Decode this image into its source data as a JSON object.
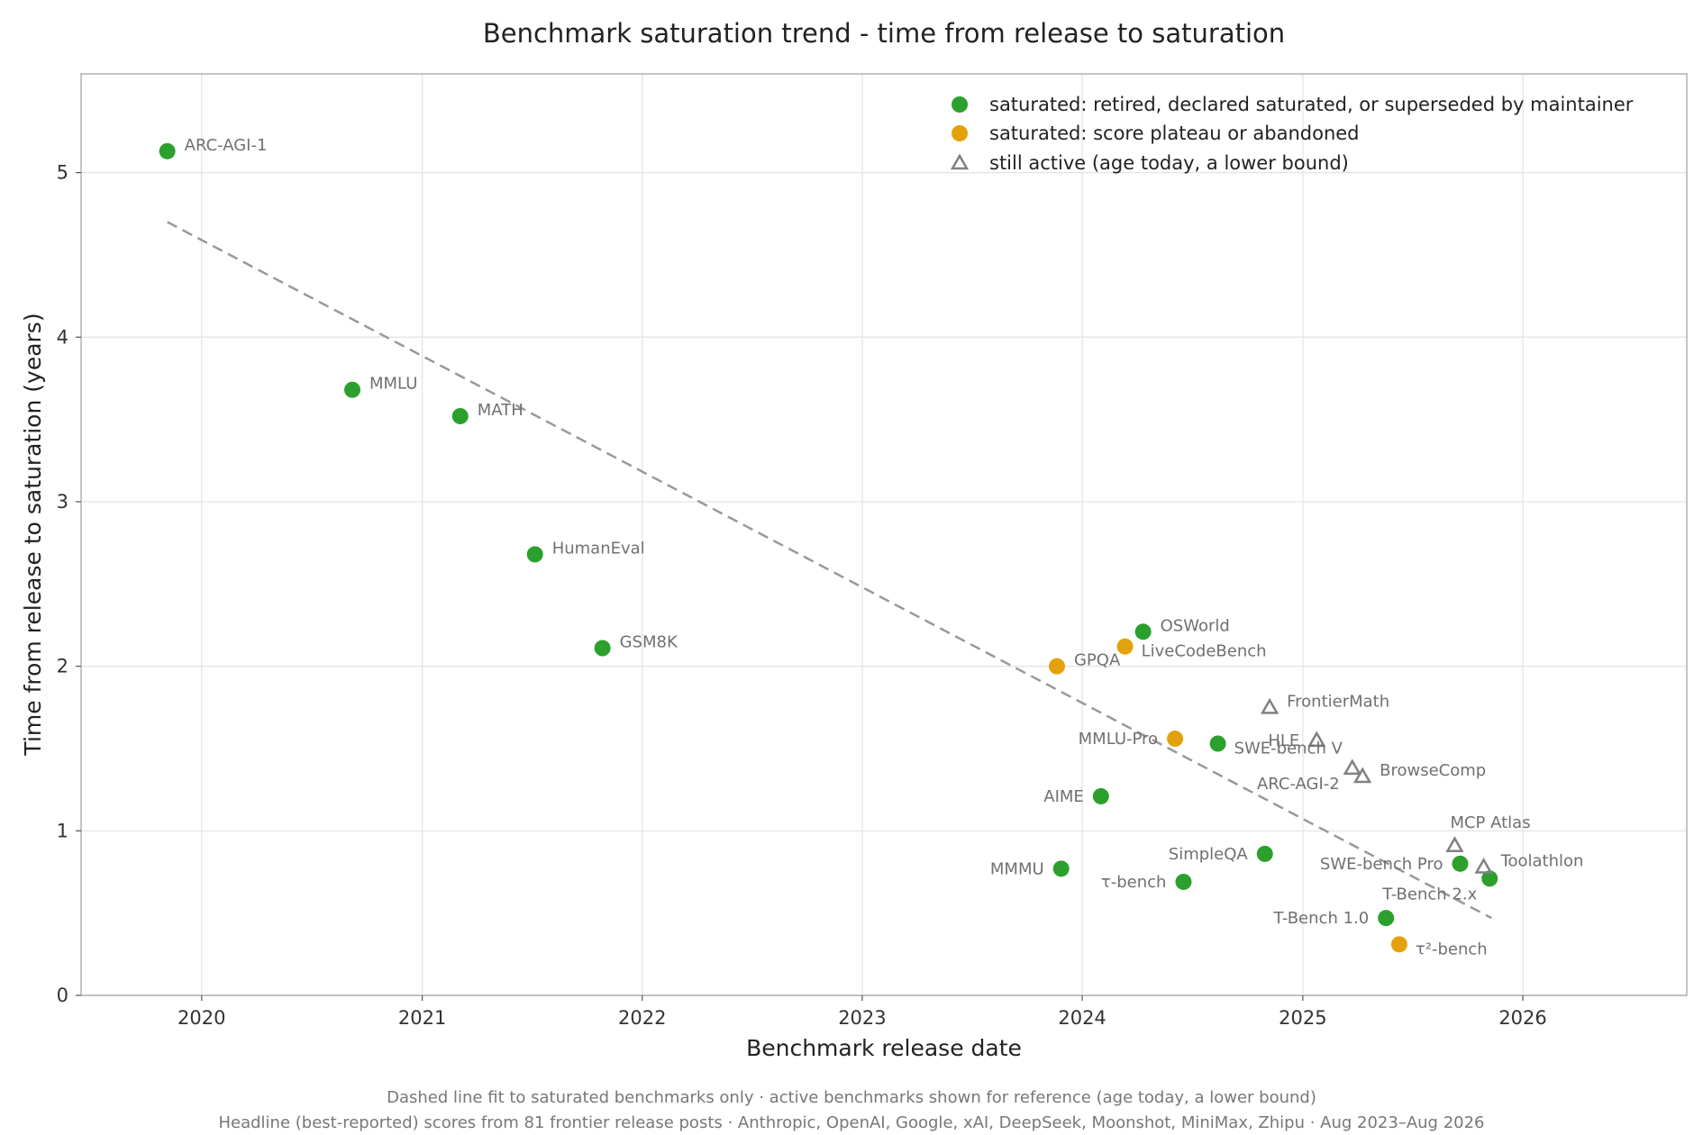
{
  "chart_data": {
    "type": "scatter",
    "title": "Benchmark saturation trend - time from release to saturation",
    "xlabel": "Benchmark release date",
    "ylabel": "Time from release to saturation (years)",
    "x_scale": "date",
    "xlim": [
      "2019-06-15",
      "2026-09-30"
    ],
    "ylim": [
      0,
      5.6
    ],
    "x_ticks": [
      {
        "date": "2020-01-01",
        "label": "2020"
      },
      {
        "date": "2021-01-01",
        "label": "2021"
      },
      {
        "date": "2022-01-01",
        "label": "2022"
      },
      {
        "date": "2023-01-01",
        "label": "2023"
      },
      {
        "date": "2024-01-01",
        "label": "2024"
      },
      {
        "date": "2025-01-01",
        "label": "2025"
      },
      {
        "date": "2026-01-01",
        "label": "2026"
      }
    ],
    "y_ticks": [
      0,
      1,
      2,
      3,
      4,
      5
    ],
    "grid": true,
    "legend_position": "top-right",
    "series": [
      {
        "name": "saturated: retired, declared saturated, or superseded by maintainer",
        "marker": "circle",
        "color": "#2ca02c",
        "points": [
          {
            "label": "ARC-AGI-1",
            "date": "2019-11-05",
            "y": 5.13,
            "label_side": "right"
          },
          {
            "label": "MMLU",
            "date": "2020-09-07",
            "y": 3.68,
            "label_side": "right"
          },
          {
            "label": "MATH",
            "date": "2021-03-05",
            "y": 3.52,
            "label_side": "right"
          },
          {
            "label": "HumanEval",
            "date": "2021-07-07",
            "y": 2.68,
            "label_side": "right"
          },
          {
            "label": "GSM8K",
            "date": "2021-10-27",
            "y": 2.11,
            "label_side": "right"
          },
          {
            "label": "OSWorld",
            "date": "2024-04-11",
            "y": 2.21,
            "label_side": "right"
          },
          {
            "label": "AIME",
            "date": "2024-02-01",
            "y": 1.21,
            "label_side": "left"
          },
          {
            "label": "MMMU",
            "date": "2023-11-27",
            "y": 0.77,
            "label_side": "left"
          },
          {
            "label": "τ-bench",
            "date": "2024-06-17",
            "y": 0.69,
            "label_side": "left"
          },
          {
            "label": "SWE-bench V",
            "date": "2024-08-13",
            "y": 1.53,
            "label_side": "below-right"
          },
          {
            "label": "SimpleQA",
            "date": "2024-10-30",
            "y": 0.86,
            "label_side": "left"
          },
          {
            "label": "T-Bench 1.0",
            "date": "2025-05-19",
            "y": 0.47,
            "label_side": "left"
          },
          {
            "label": "SWE-bench Pro",
            "date": "2025-09-19",
            "y": 0.8,
            "label_side": "left"
          },
          {
            "label": "T-Bench 2.x",
            "date": "2025-11-07",
            "y": 0.71,
            "label_side": "below-left"
          }
        ]
      },
      {
        "name": "saturated: score plateau or abandoned",
        "marker": "circle",
        "color": "#e3a20b",
        "points": [
          {
            "label": "GPQA",
            "date": "2023-11-20",
            "y": 2.0,
            "label_side": "right"
          },
          {
            "label": "LiveCodeBench",
            "date": "2024-03-12",
            "y": 2.12,
            "label_side": "below-right"
          },
          {
            "label": "MMLU-Pro",
            "date": "2024-06-03",
            "y": 1.56,
            "label_side": "left"
          },
          {
            "label": "τ²-bench",
            "date": "2025-06-10",
            "y": 0.31,
            "label_side": "below-right"
          }
        ]
      },
      {
        "name": "still active (age today, a lower bound)",
        "marker": "triangle",
        "color": "#808080",
        "points": [
          {
            "label": "FrontierMath",
            "date": "2024-11-07",
            "y": 1.75,
            "label_side": "right"
          },
          {
            "label": "HLE",
            "date": "2025-01-24",
            "y": 1.55,
            "label_side": "left"
          },
          {
            "label": "ARC-AGI-2",
            "date": "2025-03-24",
            "y": 1.38,
            "label_side": "below-left"
          },
          {
            "label": "BrowseComp",
            "date": "2025-04-10",
            "y": 1.33,
            "label_side": "right"
          },
          {
            "label": "MCP Atlas",
            "date": "2025-09-10",
            "y": 0.91,
            "label_side": "above"
          },
          {
            "label": "Toolathlon",
            "date": "2025-10-28",
            "y": 0.78,
            "label_side": "right"
          }
        ]
      }
    ],
    "trend_line": {
      "style": "dashed",
      "color": "#999999",
      "points": [
        {
          "date": "2019-11-05",
          "y": 4.7
        },
        {
          "date": "2025-11-10",
          "y": 0.47
        }
      ]
    }
  },
  "footnotes": [
    "Dashed line fit to saturated benchmarks only · active benchmarks shown for reference (age today, a lower bound)",
    "Headline (best-reported) scores from 81 frontier release posts · Anthropic, OpenAI, Google, xAI, DeepSeek, Moonshot, MiniMax, Zhipu · Aug 2023–Aug 2026"
  ]
}
